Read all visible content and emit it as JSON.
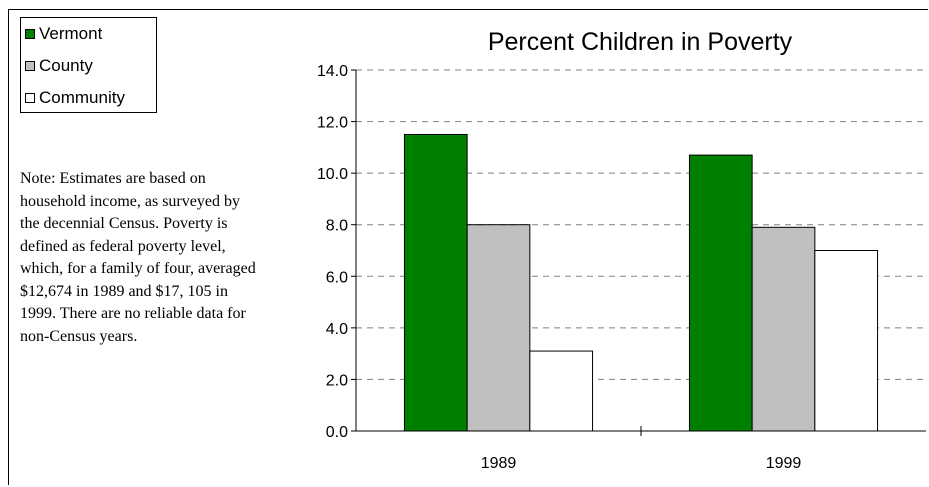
{
  "chart_data": {
    "type": "bar",
    "title": "Percent Children in Poverty",
    "categories": [
      "1989",
      "1999"
    ],
    "series": [
      {
        "name": "Vermont",
        "values": [
          11.5,
          10.7
        ],
        "color": "#008000"
      },
      {
        "name": "County",
        "values": [
          8.0,
          7.9
        ],
        "color": "#c0c0c0"
      },
      {
        "name": "Community",
        "values": [
          3.1,
          7.0
        ],
        "color": "#ffffff"
      }
    ],
    "ylim": [
      0,
      14
    ],
    "yticks": [
      "0.0",
      "2.0",
      "4.0",
      "6.0",
      "8.0",
      "10.0",
      "12.0",
      "14.0"
    ],
    "xlabel": "",
    "ylabel": "",
    "grid": "dashed horizontal",
    "legend_position": "top-left"
  },
  "note": "Note: Estimates are based on\nhousehold income, as surveyed by\nthe decennial Census.  Poverty is\ndefined as federal poverty level,\nwhich, for a family of four, averaged\n$12,674 in 1989 and $17, 105 in\n1999.  There are no reliable data for\nnon-Census years."
}
